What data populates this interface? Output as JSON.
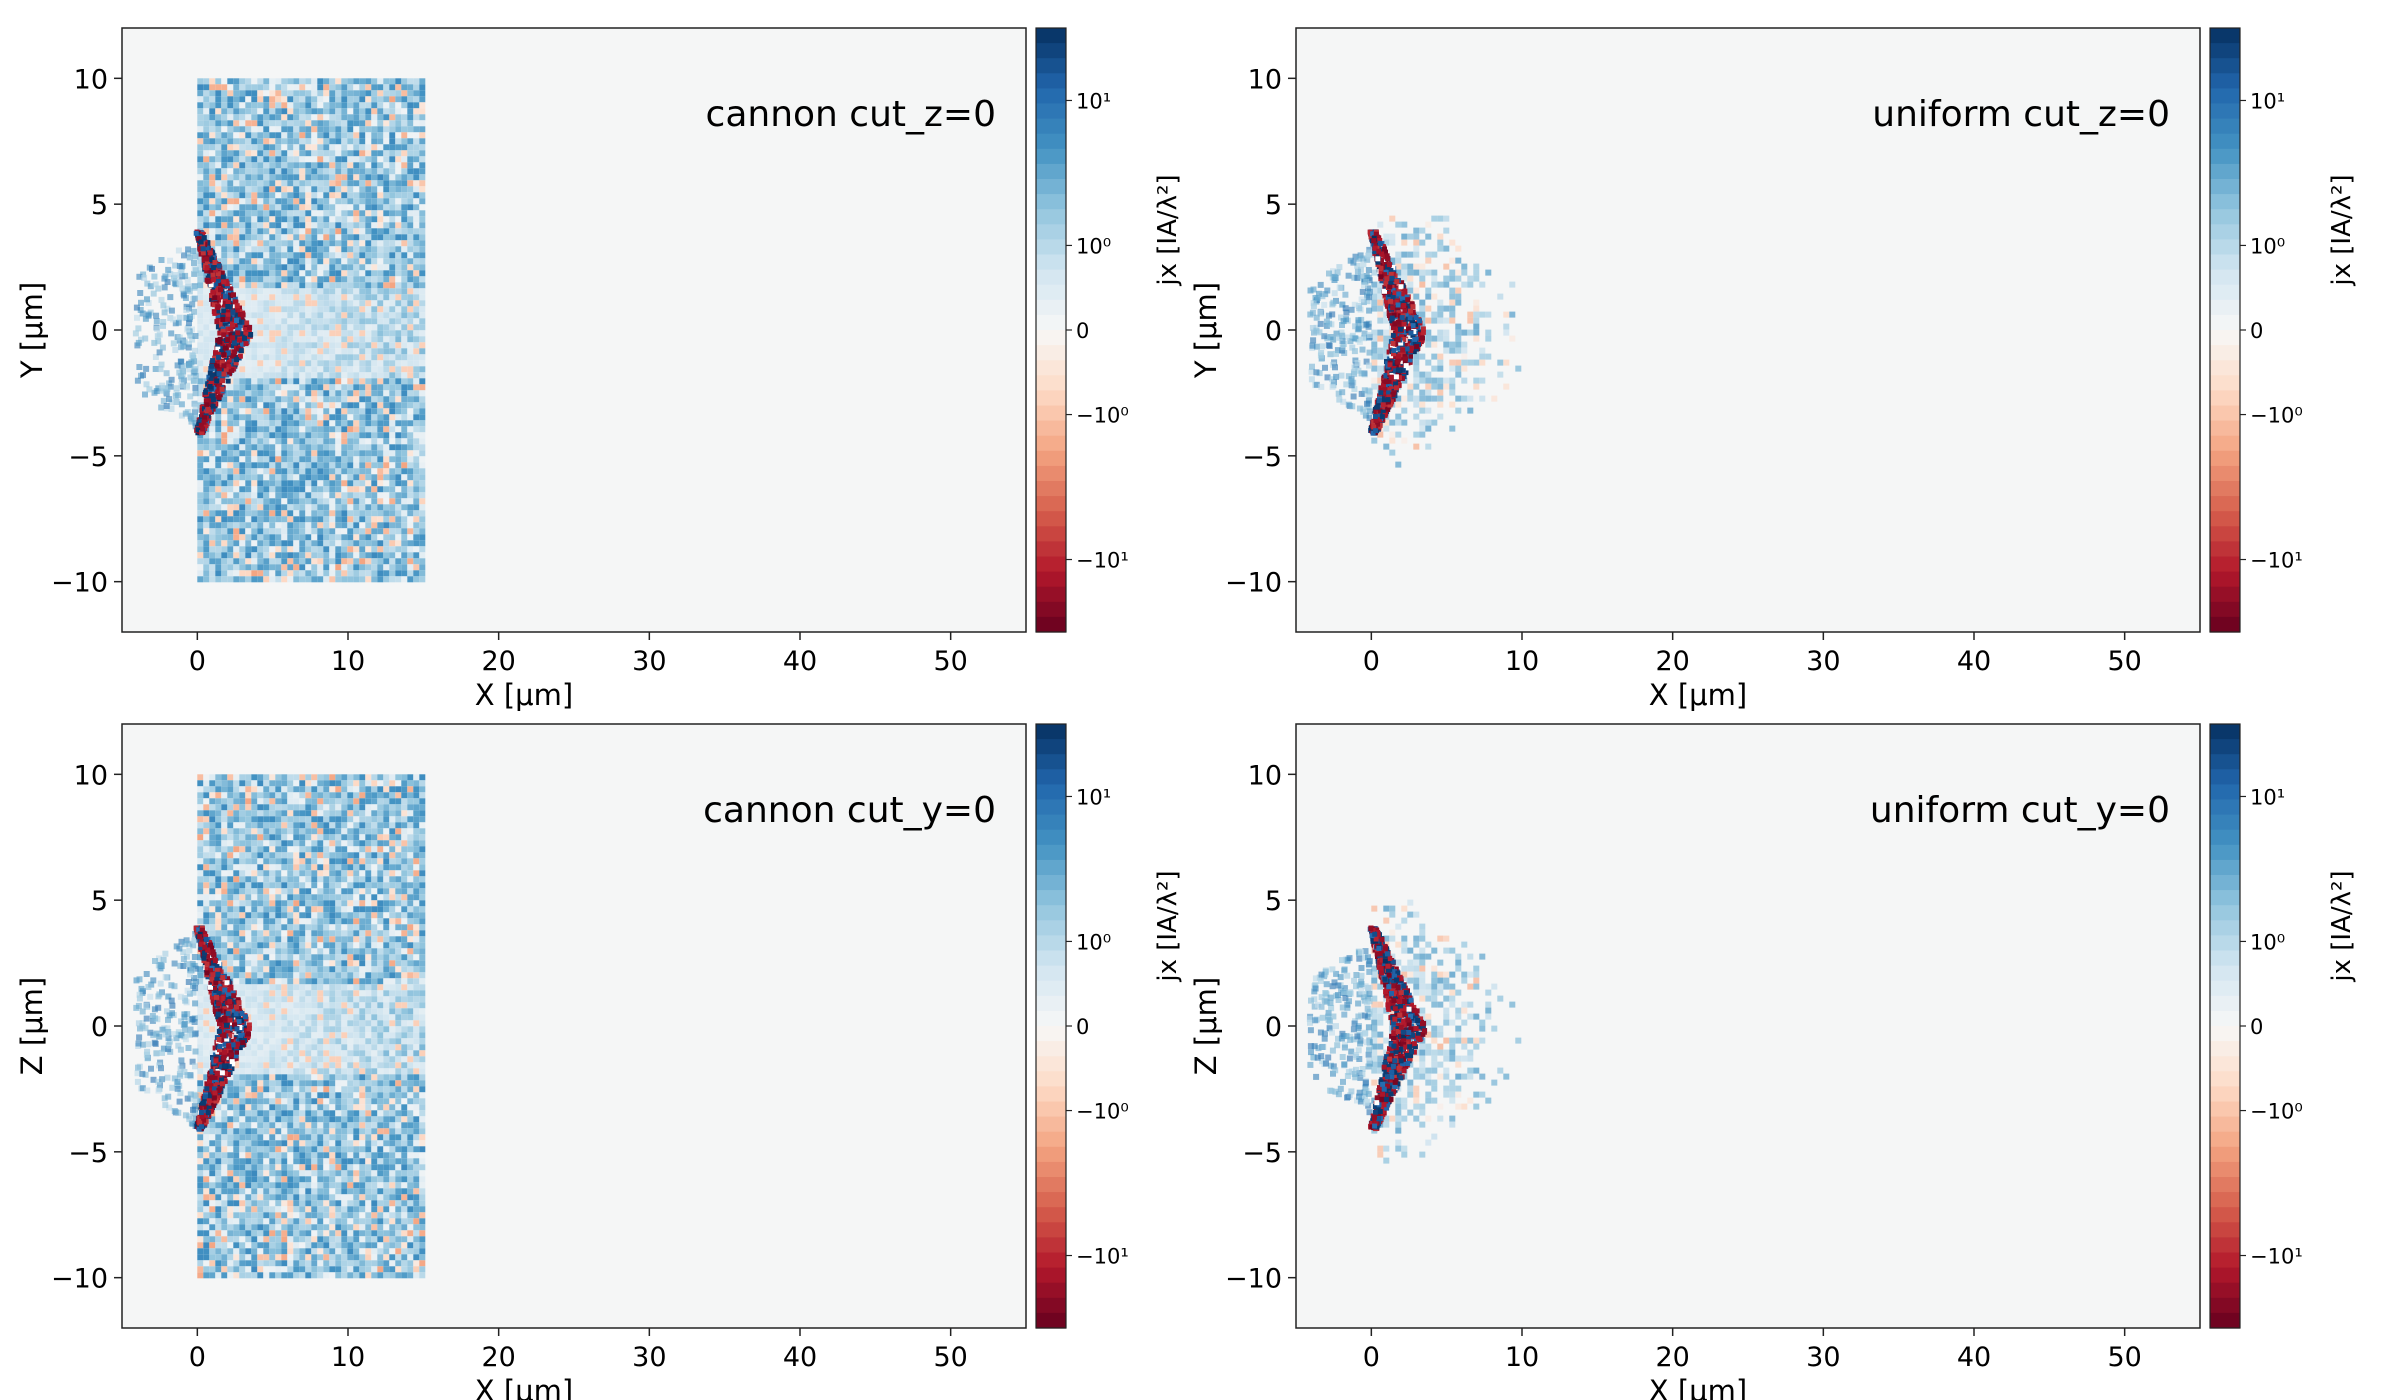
{
  "colors": {
    "background": "#f5f6f6",
    "frame": "#222222",
    "colormap": "RdBu",
    "colormap_stops": [
      "#67001f",
      "#b2182b",
      "#d6604d",
      "#f4a582",
      "#fddbc7",
      "#f7f7f7",
      "#d1e5f0",
      "#92c5de",
      "#4393c3",
      "#2166ac",
      "#053061"
    ]
  },
  "chart_data": [
    {
      "type": "heatmap",
      "title": "cannon cut_z=0",
      "xlabel": "X  [μm]",
      "ylabel": "Y  [μm]",
      "xlim": [
        -5,
        55
      ],
      "ylim": [
        -12,
        12
      ],
      "xticks": [
        0,
        10,
        20,
        30,
        40,
        50
      ],
      "yticks": [
        -10,
        -5,
        0,
        5,
        10
      ],
      "xtick_labels": [
        "0",
        "10",
        "20",
        "30",
        "40",
        "50"
      ],
      "ytick_labels": [
        "−10",
        "−5",
        "0",
        "5",
        "10"
      ],
      "target_region": {
        "x": [
          0,
          15
        ],
        "y": [
          -10,
          10
        ]
      },
      "colorbar": {
        "label": "jx  [IA/λ²]",
        "scale": "symlog",
        "ticks": [
          "10¹",
          "10⁰",
          "0",
          "−10⁰",
          "−10¹"
        ]
      }
    },
    {
      "type": "heatmap",
      "title": "uniform cut_z=0",
      "xlabel": "X  [μm]",
      "ylabel": "Y  [μm]",
      "xlim": [
        -5,
        55
      ],
      "ylim": [
        -12,
        12
      ],
      "xticks": [
        0,
        10,
        20,
        30,
        40,
        50
      ],
      "yticks": [
        -10,
        -5,
        0,
        5,
        10
      ],
      "xtick_labels": [
        "0",
        "10",
        "20",
        "30",
        "40",
        "50"
      ],
      "ytick_labels": [
        "−10",
        "−5",
        "0",
        "5",
        "10"
      ],
      "target_region": {
        "x": [
          0,
          10
        ],
        "y": [
          -5,
          5
        ]
      },
      "colorbar": {
        "label": "jx  [IA/λ²]",
        "scale": "symlog",
        "ticks": [
          "10¹",
          "10⁰",
          "0",
          "−10⁰",
          "−10¹"
        ]
      }
    },
    {
      "type": "heatmap",
      "title": "cannon cut_y=0",
      "xlabel": "X  [μm]",
      "ylabel": "Z  [μm]",
      "xlim": [
        -5,
        55
      ],
      "ylim": [
        -12,
        12
      ],
      "xticks": [
        0,
        10,
        20,
        30,
        40,
        50
      ],
      "yticks": [
        -10,
        -5,
        0,
        5,
        10
      ],
      "xtick_labels": [
        "0",
        "10",
        "20",
        "30",
        "40",
        "50"
      ],
      "ytick_labels": [
        "−10",
        "−5",
        "0",
        "5",
        "10"
      ],
      "target_region": {
        "x": [
          0,
          15
        ],
        "y": [
          -10,
          10
        ]
      },
      "colorbar": {
        "label": "jx  [IA/λ²]",
        "scale": "symlog",
        "ticks": [
          "10¹",
          "10⁰",
          "0",
          "−10⁰",
          "−10¹"
        ]
      }
    },
    {
      "type": "heatmap",
      "title": "uniform cut_y=0",
      "xlabel": "X  [μm]",
      "ylabel": "Z  [μm]",
      "xlim": [
        -5,
        55
      ],
      "ylim": [
        -12,
        12
      ],
      "xticks": [
        0,
        10,
        20,
        30,
        40,
        50
      ],
      "yticks": [
        -10,
        -5,
        0,
        5,
        10
      ],
      "xtick_labels": [
        "0",
        "10",
        "20",
        "30",
        "40",
        "50"
      ],
      "ytick_labels": [
        "−10",
        "−5",
        "0",
        "5",
        "10"
      ],
      "target_region": {
        "x": [
          0,
          10
        ],
        "y": [
          -5,
          5
        ]
      },
      "colorbar": {
        "label": "jx  [IA/λ²]",
        "scale": "symlog",
        "ticks": [
          "10¹",
          "10⁰",
          "0",
          "−10⁰",
          "−10¹"
        ]
      }
    }
  ]
}
